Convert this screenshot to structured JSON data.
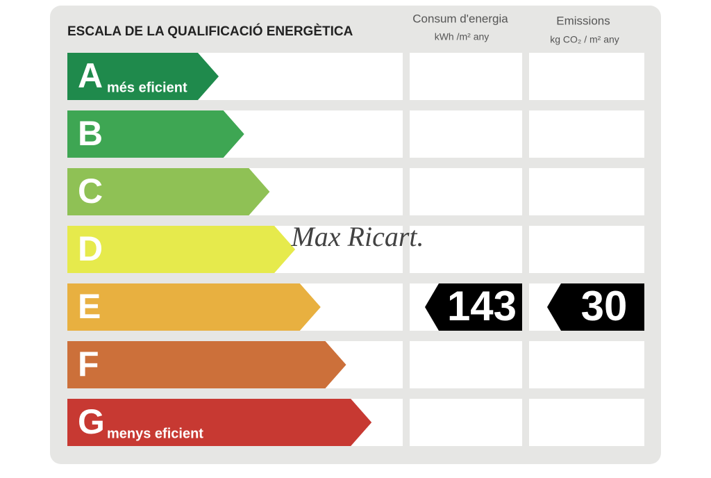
{
  "header": {
    "title": "ESCALA DE LA QUALIFICACIÓ ENERGÈTICA",
    "consumption": {
      "title": "Consum d'energia",
      "unit": "kWh /m² any"
    },
    "emissions": {
      "title": "Emissions",
      "unit": "kg CO₂ / m² any"
    }
  },
  "watermark": "Max Ricart.",
  "rows": [
    {
      "letter": "A",
      "label": "més eficient",
      "color": "#1f8a4c"
    },
    {
      "letter": "B",
      "color": "#3ea653"
    },
    {
      "letter": "C",
      "color": "#8fc155"
    },
    {
      "letter": "D",
      "color": "#e6ea4c"
    },
    {
      "letter": "E",
      "color": "#e8b040",
      "consumption": 143,
      "emissions": 30
    },
    {
      "letter": "F",
      "color": "#cc703a"
    },
    {
      "letter": "G",
      "label": "menys eficient",
      "color": "#c73932"
    }
  ]
}
